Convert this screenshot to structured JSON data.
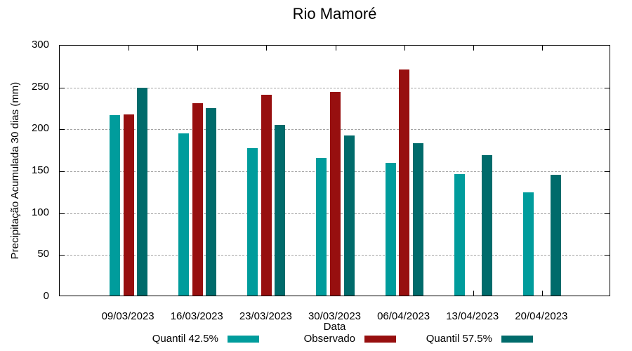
{
  "chart_data": {
    "type": "bar",
    "title": "Rio Mamoré",
    "xlabel": "Data",
    "ylabel": "Precipitação Acumulada 30 dias (mm)",
    "ylim": [
      0,
      300
    ],
    "yticks": [
      0,
      50,
      100,
      150,
      200,
      250,
      300
    ],
    "grid": "horizontal-dashed",
    "legend_position": "bottom-center",
    "categories": [
      "09/03/2023",
      "16/03/2023",
      "23/03/2023",
      "30/03/2023",
      "06/04/2023",
      "13/04/2023",
      "20/04/2023"
    ],
    "series": [
      {
        "name": "Quantil 42.5%",
        "color": "#009C9C",
        "values": [
          215,
          194,
          176,
          164,
          158,
          145,
          123
        ]
      },
      {
        "name": "Observado",
        "color": "#970F0F",
        "values": [
          216,
          230,
          240,
          243,
          270,
          null,
          null
        ]
      },
      {
        "name": "Quantil 57.5%",
        "color": "#006B6B",
        "values": [
          248,
          224,
          204,
          191,
          182,
          168,
          144
        ]
      }
    ],
    "colors": {
      "axis": "#000000",
      "gridline": "#a3a3a3",
      "background": "#ffffff"
    }
  }
}
